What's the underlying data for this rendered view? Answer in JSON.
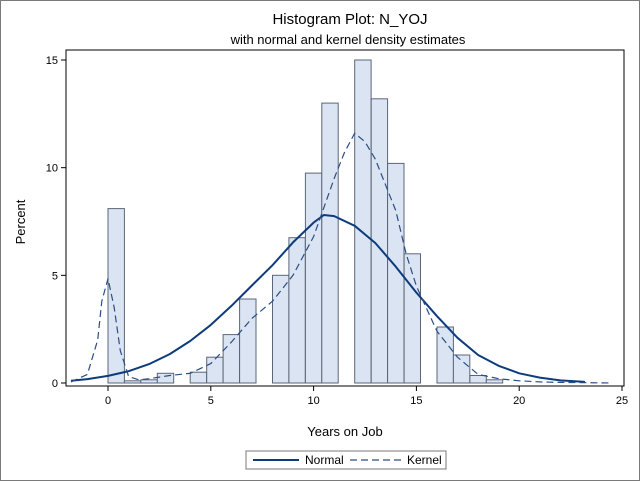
{
  "chart_data": {
    "type": "bar",
    "title": "Histogram Plot: N_YOJ",
    "subtitle": "with normal and kernel density estimates",
    "xlabel": "Years on Job",
    "ylabel": "Percent",
    "xlim": [
      -2,
      25
    ],
    "ylim": [
      0,
      15.2
    ],
    "xticks": [
      0,
      5,
      10,
      15,
      20,
      25
    ],
    "yticks": [
      0,
      5,
      10,
      15
    ],
    "bin_width": 0.8,
    "bins": [
      {
        "x": 0.4,
        "value": 8.1
      },
      {
        "x": 1.2,
        "value": 0.1
      },
      {
        "x": 2.0,
        "value": 0.15
      },
      {
        "x": 2.8,
        "value": 0.45
      },
      {
        "x": 4.4,
        "value": 0.5
      },
      {
        "x": 5.2,
        "value": 1.2
      },
      {
        "x": 6.0,
        "value": 2.25
      },
      {
        "x": 6.8,
        "value": 3.9
      },
      {
        "x": 8.4,
        "value": 5.0
      },
      {
        "x": 9.2,
        "value": 6.75
      },
      {
        "x": 10.0,
        "value": 9.75
      },
      {
        "x": 10.8,
        "value": 13.0
      },
      {
        "x": 12.4,
        "value": 15.0
      },
      {
        "x": 13.2,
        "value": 13.2
      },
      {
        "x": 14.0,
        "value": 10.2
      },
      {
        "x": 14.8,
        "value": 6.0
      },
      {
        "x": 16.4,
        "value": 2.6
      },
      {
        "x": 17.2,
        "value": 1.3
      },
      {
        "x": 18.0,
        "value": 0.35
      },
      {
        "x": 18.8,
        "value": 0.15
      }
    ],
    "series": [
      {
        "name": "Normal",
        "style": "solid",
        "x": [
          -1.8,
          -1,
          0,
          1,
          2,
          3,
          4,
          5,
          6,
          7,
          8,
          9,
          10,
          10.5,
          11,
          12,
          13,
          14,
          15,
          16,
          17,
          18,
          19,
          20,
          21,
          22,
          23.2
        ],
        "y": [
          0.1,
          0.18,
          0.33,
          0.55,
          0.88,
          1.34,
          1.95,
          2.7,
          3.58,
          4.53,
          5.47,
          6.53,
          7.45,
          7.8,
          7.75,
          7.3,
          6.5,
          5.4,
          4.2,
          3.1,
          2.1,
          1.3,
          0.8,
          0.45,
          0.25,
          0.12,
          0.05
        ]
      },
      {
        "name": "Kernel",
        "style": "dashed",
        "x": [
          -1.8,
          -1,
          -0.5,
          -0.3,
          0,
          0.3,
          0.6,
          1,
          1.5,
          2,
          3,
          4,
          5,
          6,
          7,
          8,
          9,
          10,
          11,
          11.5,
          12,
          12.5,
          13,
          14,
          14.5,
          15,
          16,
          16.5,
          17,
          18,
          19,
          20,
          21,
          22,
          23,
          24.5
        ],
        "y": [
          0.05,
          0.4,
          2.0,
          3.8,
          4.85,
          3.5,
          1.5,
          0.3,
          0.15,
          0.2,
          0.35,
          0.45,
          0.9,
          1.9,
          3.0,
          3.8,
          5.0,
          6.8,
          9.5,
          10.7,
          11.6,
          11.2,
          10.4,
          8.0,
          6.0,
          4.5,
          2.4,
          1.8,
          1.2,
          0.4,
          0.2,
          0.1,
          0.05,
          0.03,
          0.02,
          0.0
        ]
      }
    ],
    "colors": {
      "bar_fill": "#dbe4f2",
      "bar_stroke": "#5a6678",
      "normal": "#0d3b7c",
      "kernel": "#2a4e85",
      "axis": "#000000"
    },
    "legend": {
      "position": "bottom",
      "entries": [
        "Normal",
        "Kernel"
      ]
    }
  }
}
